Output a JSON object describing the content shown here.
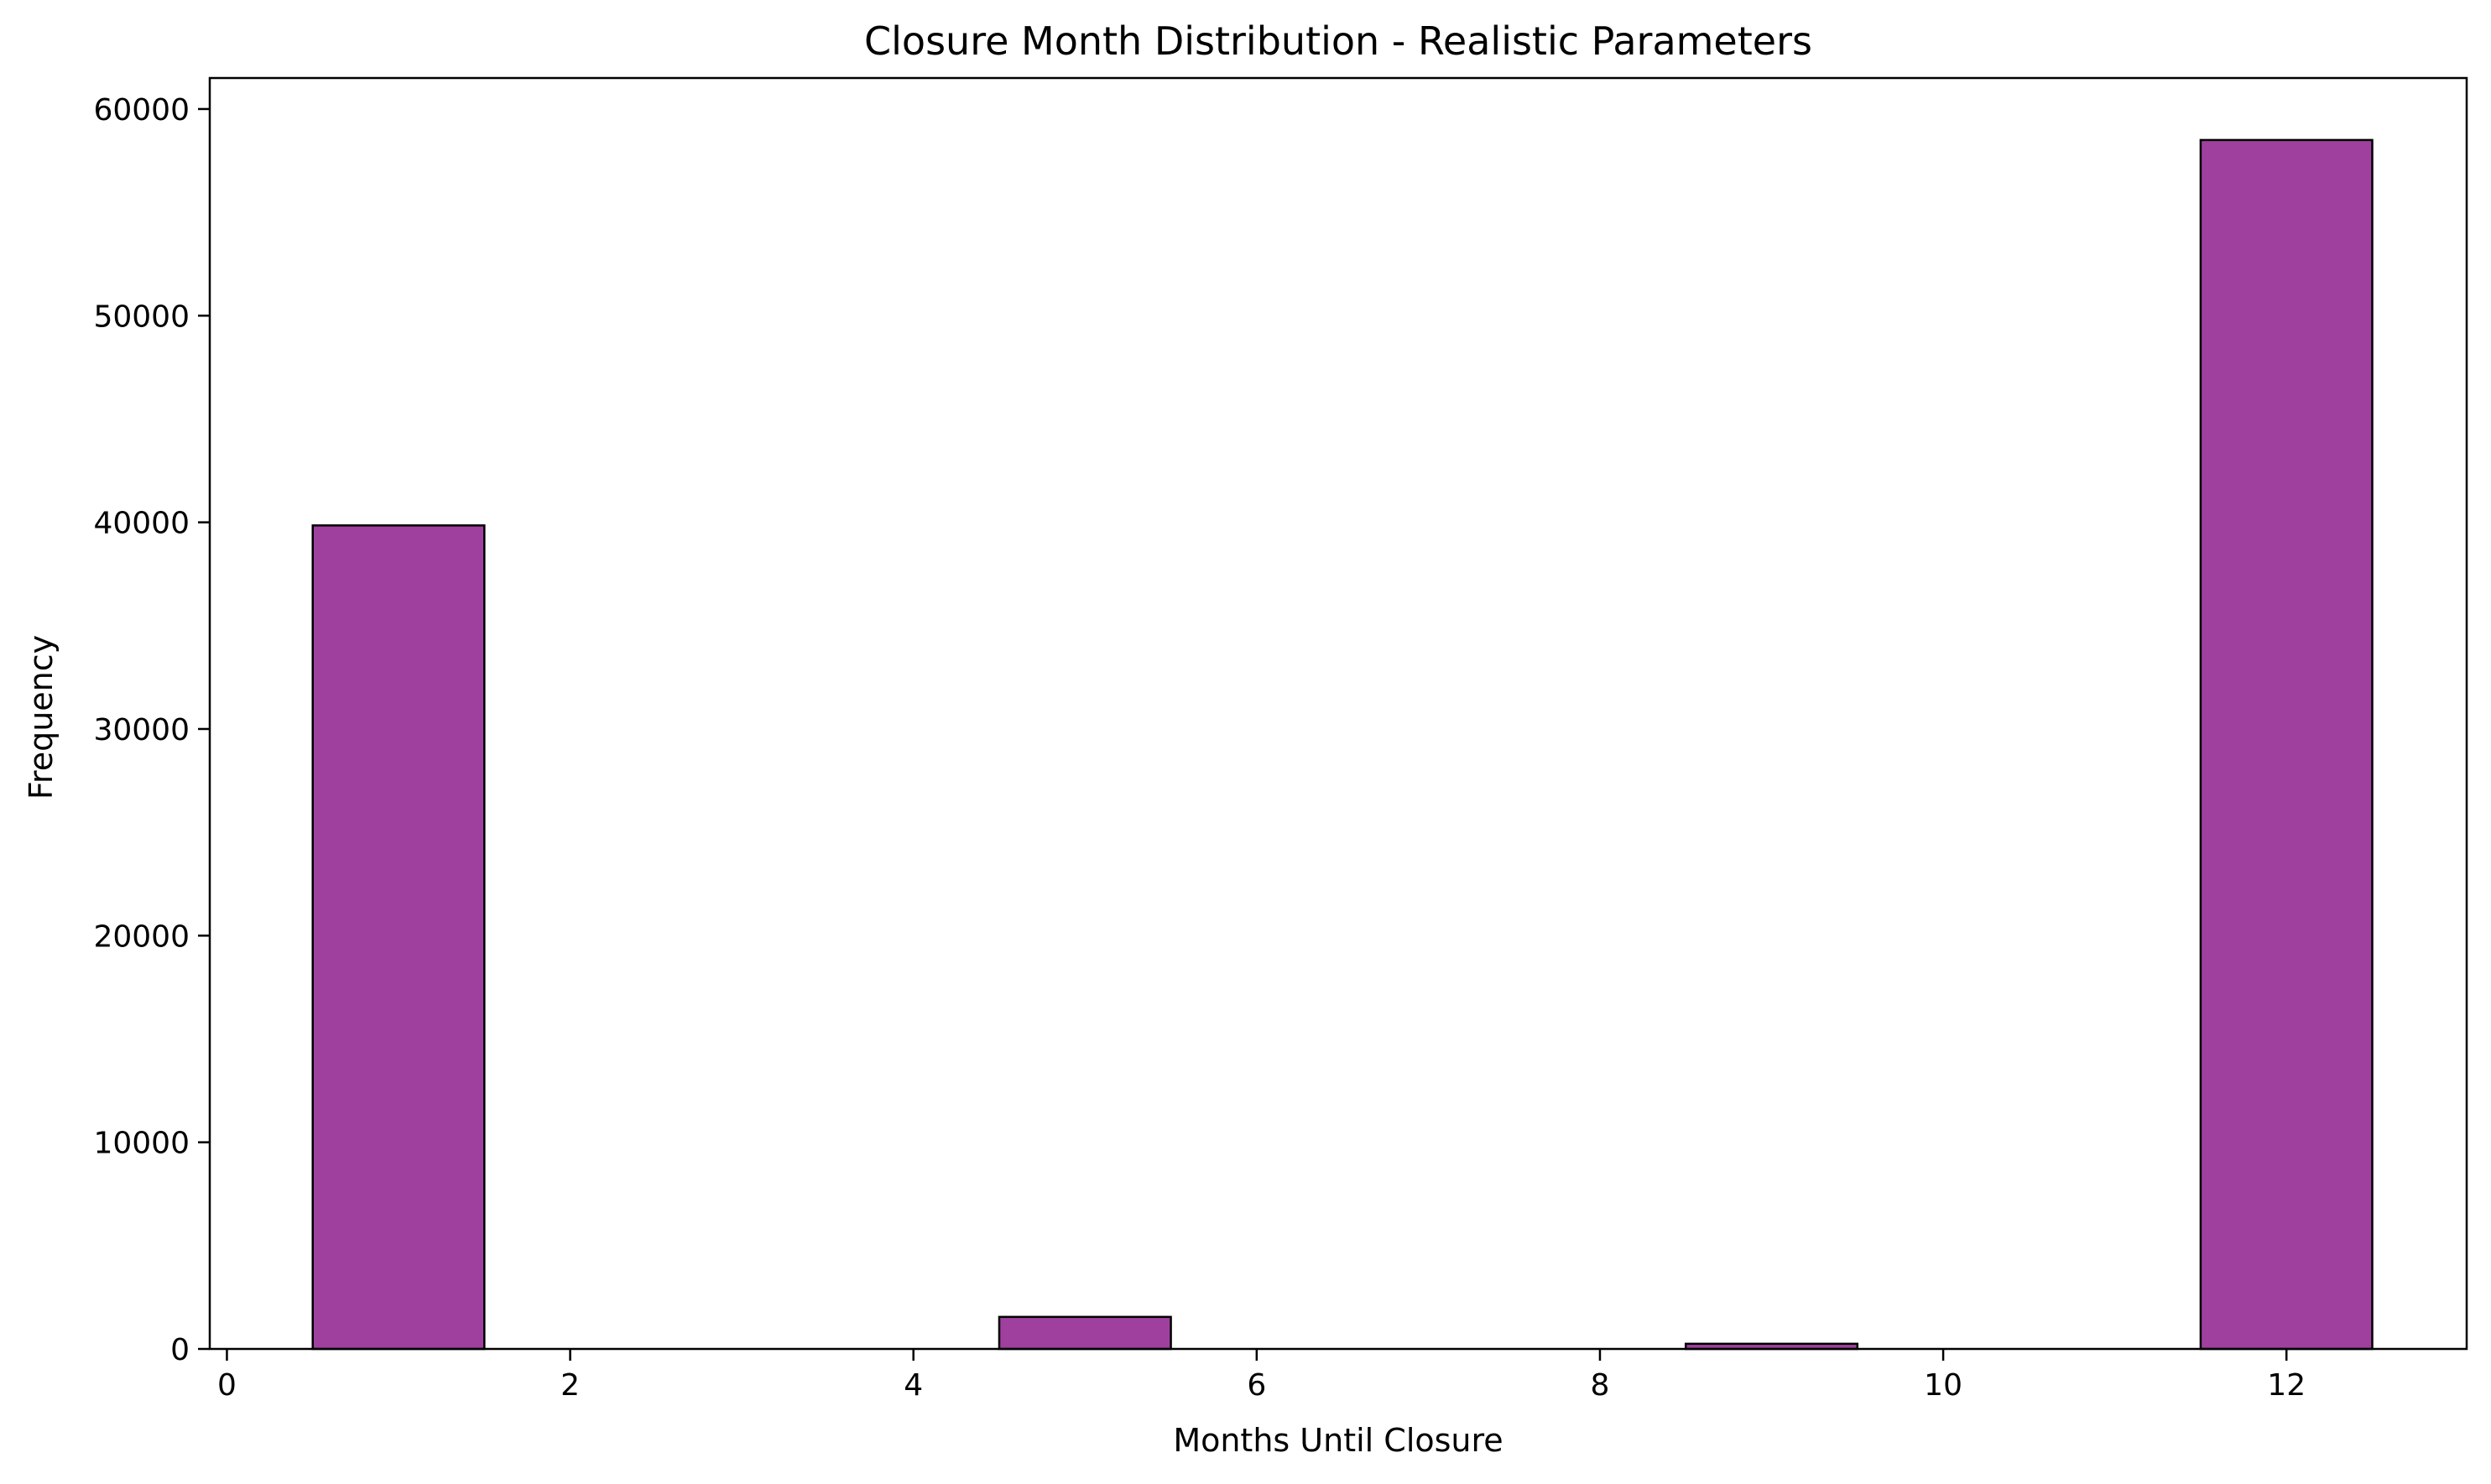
{
  "chart_data": {
    "type": "bar",
    "title": "Closure Month Distribution - Realistic Parameters",
    "xlabel": "Months Until Closure",
    "ylabel": "Frequency",
    "xlim": [
      -0.1,
      13.05
    ],
    "ylim": [
      0,
      61500
    ],
    "xticks": [
      0,
      2,
      4,
      6,
      8,
      10,
      12
    ],
    "yticks": [
      0,
      10000,
      20000,
      30000,
      40000,
      50000,
      60000
    ],
    "bar_width": 1,
    "x": [
      1,
      2,
      3,
      4,
      5,
      6,
      7,
      8,
      9,
      10,
      11,
      12
    ],
    "values": [
      39850,
      0,
      0,
      0,
      1550,
      0,
      0,
      0,
      250,
      0,
      0,
      58500
    ],
    "grid": false,
    "colors": {
      "bar_fill": "#a0409e",
      "bar_edge": "#000000",
      "axes": "#000000"
    }
  }
}
